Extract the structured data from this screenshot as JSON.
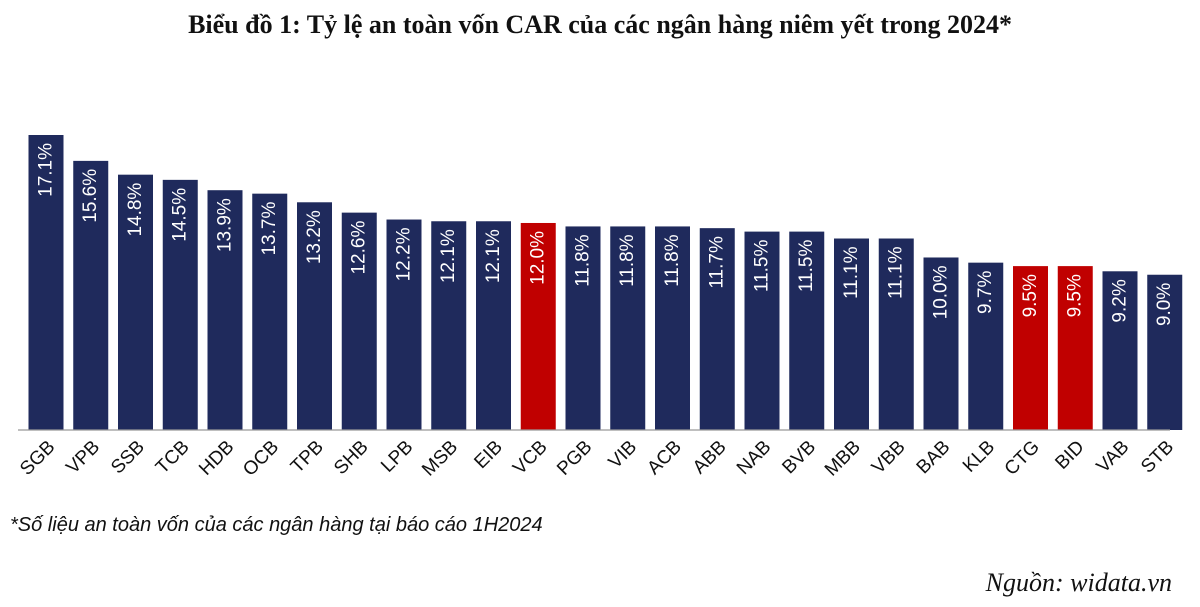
{
  "title": "Biểu đồ 1: Tỷ lệ an toàn vốn CAR của các ngân hàng niêm yết trong 2024*",
  "note": "*Số liệu an toàn vốn của các ngân hàng tại báo cáo 1H2024",
  "source": "Nguồn: widata.vn",
  "colors": {
    "default": "#1f2a5c",
    "highlight": "#c00000",
    "axis": "#999999"
  },
  "chart_data": {
    "type": "bar",
    "title": "Biểu đồ 1: Tỷ lệ an toàn vốn CAR của các ngân hàng niêm yết trong 2024*",
    "xlabel": "",
    "ylabel": "",
    "categories": [
      "SGB",
      "VPB",
      "SSB",
      "TCB",
      "HDB",
      "OCB",
      "TPB",
      "SHB",
      "LPB",
      "MSB",
      "EIB",
      "VCB",
      "PGB",
      "VIB",
      "ACB",
      "ABB",
      "NAB",
      "BVB",
      "MBB",
      "VBB",
      "BAB",
      "KLB",
      "CTG",
      "BID",
      "VAB",
      "STB"
    ],
    "values": [
      17.1,
      15.6,
      14.8,
      14.5,
      13.9,
      13.7,
      13.2,
      12.6,
      12.2,
      12.1,
      12.1,
      12.0,
      11.8,
      11.8,
      11.8,
      11.7,
      11.5,
      11.5,
      11.1,
      11.1,
      10.0,
      9.7,
      9.5,
      9.5,
      9.2,
      9.0
    ],
    "data_labels": [
      "17.1%",
      "15.6%",
      "14.8%",
      "14.5%",
      "13.9%",
      "13.7%",
      "13.2%",
      "12.6%",
      "12.2%",
      "12.1%",
      "12.1%",
      "12.0%",
      "11.8%",
      "11.8%",
      "11.8%",
      "11.7%",
      "11.5%",
      "11.5%",
      "11.1%",
      "11.1%",
      "10.0%",
      "9.7%",
      "9.5%",
      "9.5%",
      "9.2%",
      "9.0%"
    ],
    "highlighted": [
      "VCB",
      "CTG",
      "BID"
    ],
    "ylim": [
      0,
      17.1
    ],
    "grid": false,
    "legend": "none"
  }
}
